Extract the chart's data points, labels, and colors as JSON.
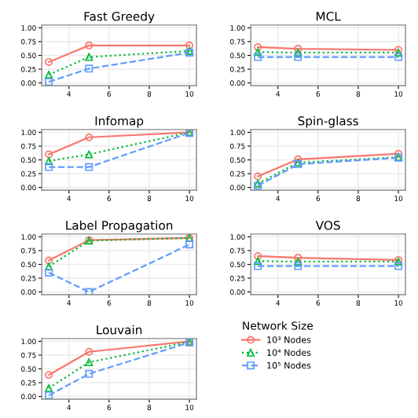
{
  "chart_data": [
    {
      "type": "line",
      "title": "Fast Greedy",
      "x": [
        3,
        5,
        10
      ],
      "xlim": [
        2.65,
        10.35
      ],
      "ylim": [
        -0.05,
        1.05
      ],
      "xticks": [
        4,
        6,
        8,
        10
      ],
      "yticks": [
        {
          "value": 0,
          "label": "0.00"
        },
        {
          "value": 0.25,
          "label": "0.25"
        },
        {
          "value": 0.5,
          "label": "0.50"
        },
        {
          "value": 0.75,
          "label": "0.75"
        },
        {
          "value": 1,
          "label": "1.00"
        }
      ],
      "grid": true,
      "series": [
        {
          "color": "#f8766d",
          "marker": "circle",
          "line_style": "solid",
          "values": [
            0.38,
            0.68,
            0.68
          ]
        },
        {
          "color": "#00ba38",
          "marker": "triangle",
          "line_style": "dotted",
          "values": [
            0.15,
            0.47,
            0.58
          ]
        },
        {
          "color": "#619cff",
          "marker": "square",
          "line_style": "dashed",
          "values": [
            0.02,
            0.26,
            0.55
          ]
        }
      ]
    },
    {
      "type": "line",
      "title": "MCL",
      "x": [
        3,
        5,
        10
      ],
      "xlim": [
        2.65,
        10.35
      ],
      "ylim": [
        -0.05,
        1.05
      ],
      "xticks": [
        4,
        6,
        8,
        10
      ],
      "yticks": [
        {
          "value": 0,
          "label": "0.00"
        },
        {
          "value": 0.25,
          "label": "0.25"
        },
        {
          "value": 0.5,
          "label": "0.50"
        },
        {
          "value": 0.75,
          "label": "0.75"
        },
        {
          "value": 1,
          "label": "1.00"
        }
      ],
      "grid": true,
      "series": [
        {
          "color": "#f8766d",
          "marker": "circle",
          "line_style": "solid",
          "values": [
            0.65,
            0.62,
            0.6
          ]
        },
        {
          "color": "#00ba38",
          "marker": "triangle",
          "line_style": "dotted",
          "values": [
            0.56,
            0.55,
            0.55
          ]
        },
        {
          "color": "#619cff",
          "marker": "square",
          "line_style": "dashed",
          "values": [
            0.47,
            0.47,
            0.47
          ]
        }
      ]
    },
    {
      "type": "line",
      "title": "Infomap",
      "x": [
        3,
        5,
        10
      ],
      "xlim": [
        2.65,
        10.35
      ],
      "ylim": [
        -0.05,
        1.05
      ],
      "xticks": [
        4,
        6,
        8,
        10
      ],
      "yticks": [
        {
          "value": 0,
          "label": "0.00"
        },
        {
          "value": 0.25,
          "label": "0.25"
        },
        {
          "value": 0.5,
          "label": "0.50"
        },
        {
          "value": 0.75,
          "label": "0.75"
        },
        {
          "value": 1,
          "label": "1.00"
        }
      ],
      "grid": true,
      "series": [
        {
          "color": "#f8766d",
          "marker": "circle",
          "line_style": "solid",
          "values": [
            0.6,
            0.91,
            1.0
          ]
        },
        {
          "color": "#00ba38",
          "marker": "triangle",
          "line_style": "dotted",
          "values": [
            0.48,
            0.6,
            1.0
          ]
        },
        {
          "color": "#619cff",
          "marker": "square",
          "line_style": "dashed",
          "values": [
            0.37,
            0.37,
            0.99
          ]
        }
      ]
    },
    {
      "type": "line",
      "title": "Spin-glass",
      "x": [
        3,
        5,
        10
      ],
      "xlim": [
        2.65,
        10.35
      ],
      "ylim": [
        -0.05,
        1.05
      ],
      "xticks": [
        4,
        6,
        8,
        10
      ],
      "yticks": [
        {
          "value": 0,
          "label": "0.00"
        },
        {
          "value": 0.25,
          "label": "0.25"
        },
        {
          "value": 0.5,
          "label": "0.50"
        },
        {
          "value": 0.75,
          "label": "0.75"
        },
        {
          "value": 1,
          "label": "1.00"
        }
      ],
      "grid": true,
      "series": [
        {
          "color": "#f8766d",
          "marker": "circle",
          "line_style": "solid",
          "values": [
            0.2,
            0.51,
            0.61
          ]
        },
        {
          "color": "#00ba38",
          "marker": "triangle",
          "line_style": "dotted",
          "values": [
            0.07,
            0.45,
            0.55
          ]
        },
        {
          "color": "#619cff",
          "marker": "square",
          "line_style": "dashed",
          "values": [
            0.03,
            0.42,
            0.54
          ]
        }
      ]
    },
    {
      "type": "line",
      "title": "Label Propagation",
      "x": [
        3,
        5,
        10
      ],
      "xlim": [
        2.65,
        10.35
      ],
      "ylim": [
        -0.05,
        1.05
      ],
      "xticks": [
        4,
        6,
        8,
        10
      ],
      "yticks": [
        {
          "value": 0,
          "label": "0.00"
        },
        {
          "value": 0.25,
          "label": "0.25"
        },
        {
          "value": 0.5,
          "label": "0.50"
        },
        {
          "value": 0.75,
          "label": "0.75"
        },
        {
          "value": 1,
          "label": "1.00"
        }
      ],
      "grid": true,
      "series": [
        {
          "color": "#f8766d",
          "marker": "circle",
          "line_style": "solid",
          "values": [
            0.57,
            0.94,
            0.98
          ]
        },
        {
          "color": "#00ba38",
          "marker": "triangle",
          "line_style": "dotted",
          "values": [
            0.46,
            0.93,
            0.98
          ]
        },
        {
          "color": "#619cff",
          "marker": "square",
          "line_style": "dashed",
          "values": [
            0.35,
            0.0,
            0.86
          ]
        }
      ]
    },
    {
      "type": "line",
      "title": "VOS",
      "x": [
        3,
        5,
        10
      ],
      "xlim": [
        2.65,
        10.35
      ],
      "ylim": [
        -0.05,
        1.05
      ],
      "xticks": [
        4,
        6,
        8,
        10
      ],
      "yticks": [
        {
          "value": 0,
          "label": "0.00"
        },
        {
          "value": 0.25,
          "label": "0.25"
        },
        {
          "value": 0.5,
          "label": "0.50"
        },
        {
          "value": 0.75,
          "label": "0.75"
        },
        {
          "value": 1,
          "label": "1.00"
        }
      ],
      "grid": true,
      "series": [
        {
          "color": "#f8766d",
          "marker": "circle",
          "line_style": "solid",
          "values": [
            0.65,
            0.62,
            0.58
          ]
        },
        {
          "color": "#00ba38",
          "marker": "triangle",
          "line_style": "dotted",
          "values": [
            0.56,
            0.55,
            0.55
          ]
        },
        {
          "color": "#619cff",
          "marker": "square",
          "line_style": "dashed",
          "values": [
            0.47,
            0.47,
            0.47
          ]
        }
      ]
    },
    {
      "type": "line",
      "title": "Louvain",
      "x": [
        3,
        5,
        10
      ],
      "xlim": [
        2.65,
        10.35
      ],
      "ylim": [
        -0.05,
        1.05
      ],
      "xticks": [
        4,
        6,
        8,
        10
      ],
      "yticks": [
        {
          "value": 0,
          "label": "0.00"
        },
        {
          "value": 0.25,
          "label": "0.25"
        },
        {
          "value": 0.5,
          "label": "0.50"
        },
        {
          "value": 0.75,
          "label": "0.75"
        },
        {
          "value": 1,
          "label": "1.00"
        }
      ],
      "grid": true,
      "legend": "right",
      "legend_title": "Network Size",
      "series": [
        {
          "name": "10³ Nodes",
          "color": "#f8766d",
          "marker": "circle",
          "line_style": "solid",
          "values": [
            0.39,
            0.81,
            1.0
          ]
        },
        {
          "name": "10⁴ Nodes",
          "color": "#00ba38",
          "marker": "triangle",
          "line_style": "dotted",
          "values": [
            0.15,
            0.62,
            0.99
          ]
        },
        {
          "name": "10⁵ Nodes",
          "color": "#619cff",
          "marker": "square",
          "line_style": "dashed",
          "values": [
            0.02,
            0.41,
            0.98
          ]
        }
      ]
    }
  ]
}
